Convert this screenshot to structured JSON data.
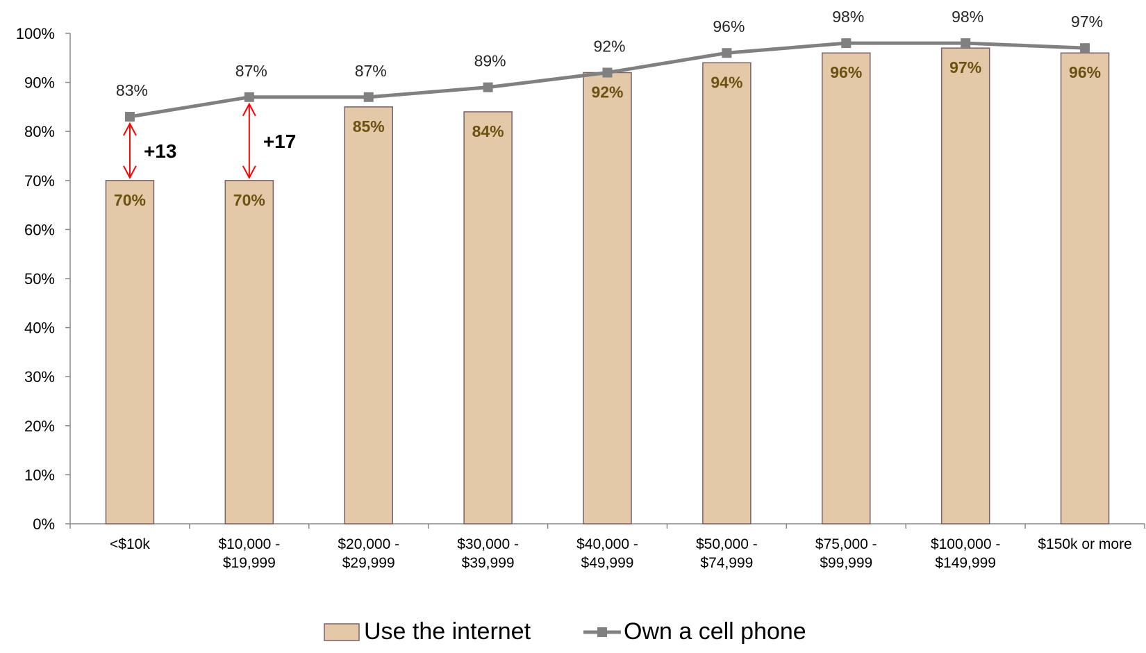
{
  "chart_data": {
    "type": "bar",
    "categories": [
      [
        "<$10k"
      ],
      [
        "$10,000 -",
        "$19,999"
      ],
      [
        "$20,000 -",
        "$29,999"
      ],
      [
        "$30,000 -",
        "$39,999"
      ],
      [
        "$40,000 -",
        "$49,999"
      ],
      [
        "$50,000 -",
        "$74,999"
      ],
      [
        "$75,000 -",
        "$99,999"
      ],
      [
        "$100,000 -",
        "$149,999"
      ],
      [
        "$150k or more"
      ]
    ],
    "series": [
      {
        "name": "Use the internet",
        "kind": "bar",
        "values": [
          70,
          70,
          85,
          84,
          92,
          94,
          96,
          97,
          96
        ],
        "labels": [
          "70%",
          "70%",
          "85%",
          "84%",
          "92%",
          "94%",
          "96%",
          "97%",
          "96%"
        ],
        "color": "#e3c9a8",
        "border_color": "#7a6068",
        "label_color": "#6b5211"
      },
      {
        "name": "Own a cell phone",
        "kind": "line",
        "values": [
          83,
          87,
          87,
          89,
          92,
          96,
          98,
          98,
          97
        ],
        "labels": [
          "83%",
          "87%",
          "87%",
          "89%",
          "92%",
          "96%",
          "98%",
          "98%",
          "97%"
        ],
        "color": "#808080",
        "marker": "square"
      }
    ],
    "gap_annotations": [
      {
        "category_index": 0,
        "from": 70,
        "to": 83,
        "label": "+13"
      },
      {
        "category_index": 1,
        "from": 70,
        "to": 87,
        "label": "+17"
      }
    ],
    "annotation_color": "#ff0000",
    "y_ticks": [
      "0%",
      "10%",
      "20%",
      "30%",
      "40%",
      "50%",
      "60%",
      "70%",
      "80%",
      "90%",
      "100%"
    ],
    "ylim": [
      0,
      100
    ],
    "ystep": 10,
    "grid": false,
    "legend_position": "bottom-center"
  }
}
